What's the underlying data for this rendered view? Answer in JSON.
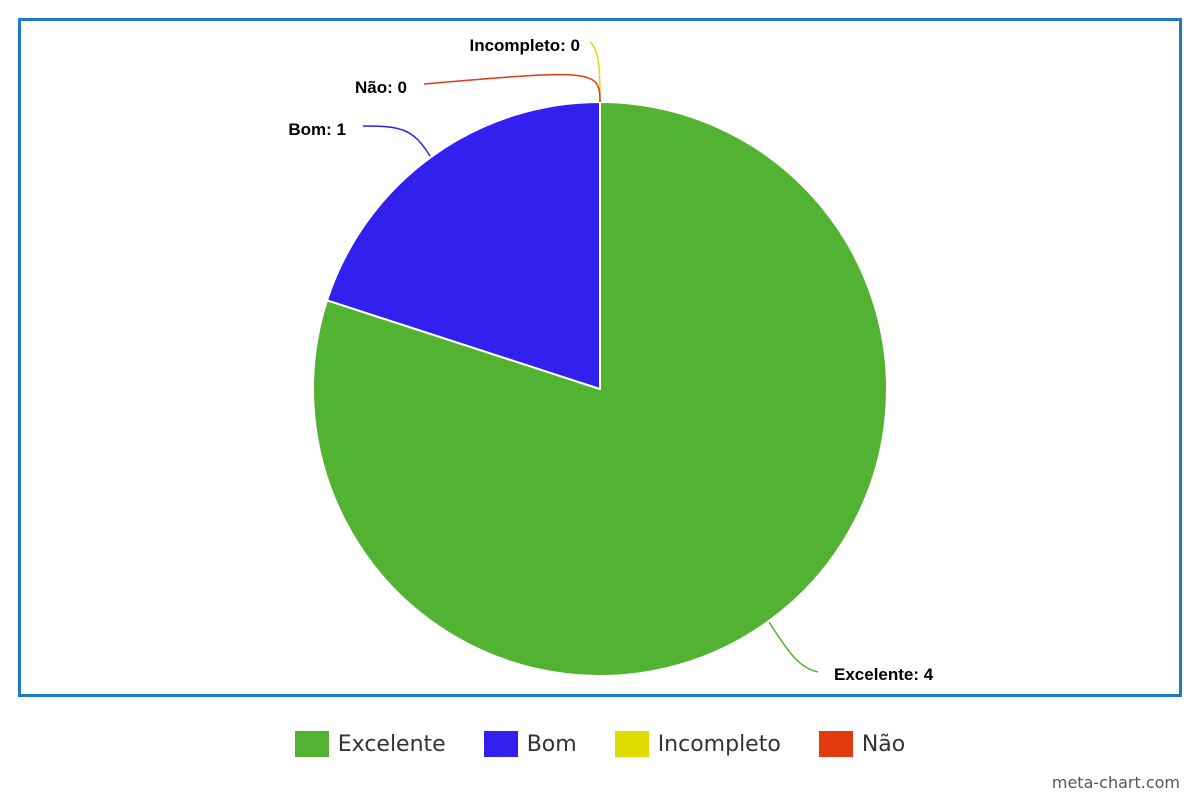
{
  "chart_data": {
    "type": "pie",
    "title": "",
    "slices": [
      {
        "label": "Excelente",
        "value": 4,
        "color": "#52b232",
        "data_label": "Excelente: 4"
      },
      {
        "label": "Bom",
        "value": 1,
        "color": "#3120ee",
        "data_label": "Bom: 1"
      },
      {
        "label": "Incompleto",
        "value": 0,
        "color": "#dfdd00",
        "data_label": "Incompleto: 0"
      },
      {
        "label": "Não",
        "value": 0,
        "color": "#e03a10",
        "data_label": "Não: 0"
      }
    ],
    "legend_position": "bottom",
    "frame_color": "#1f78c8"
  },
  "credit": "meta-chart.com"
}
